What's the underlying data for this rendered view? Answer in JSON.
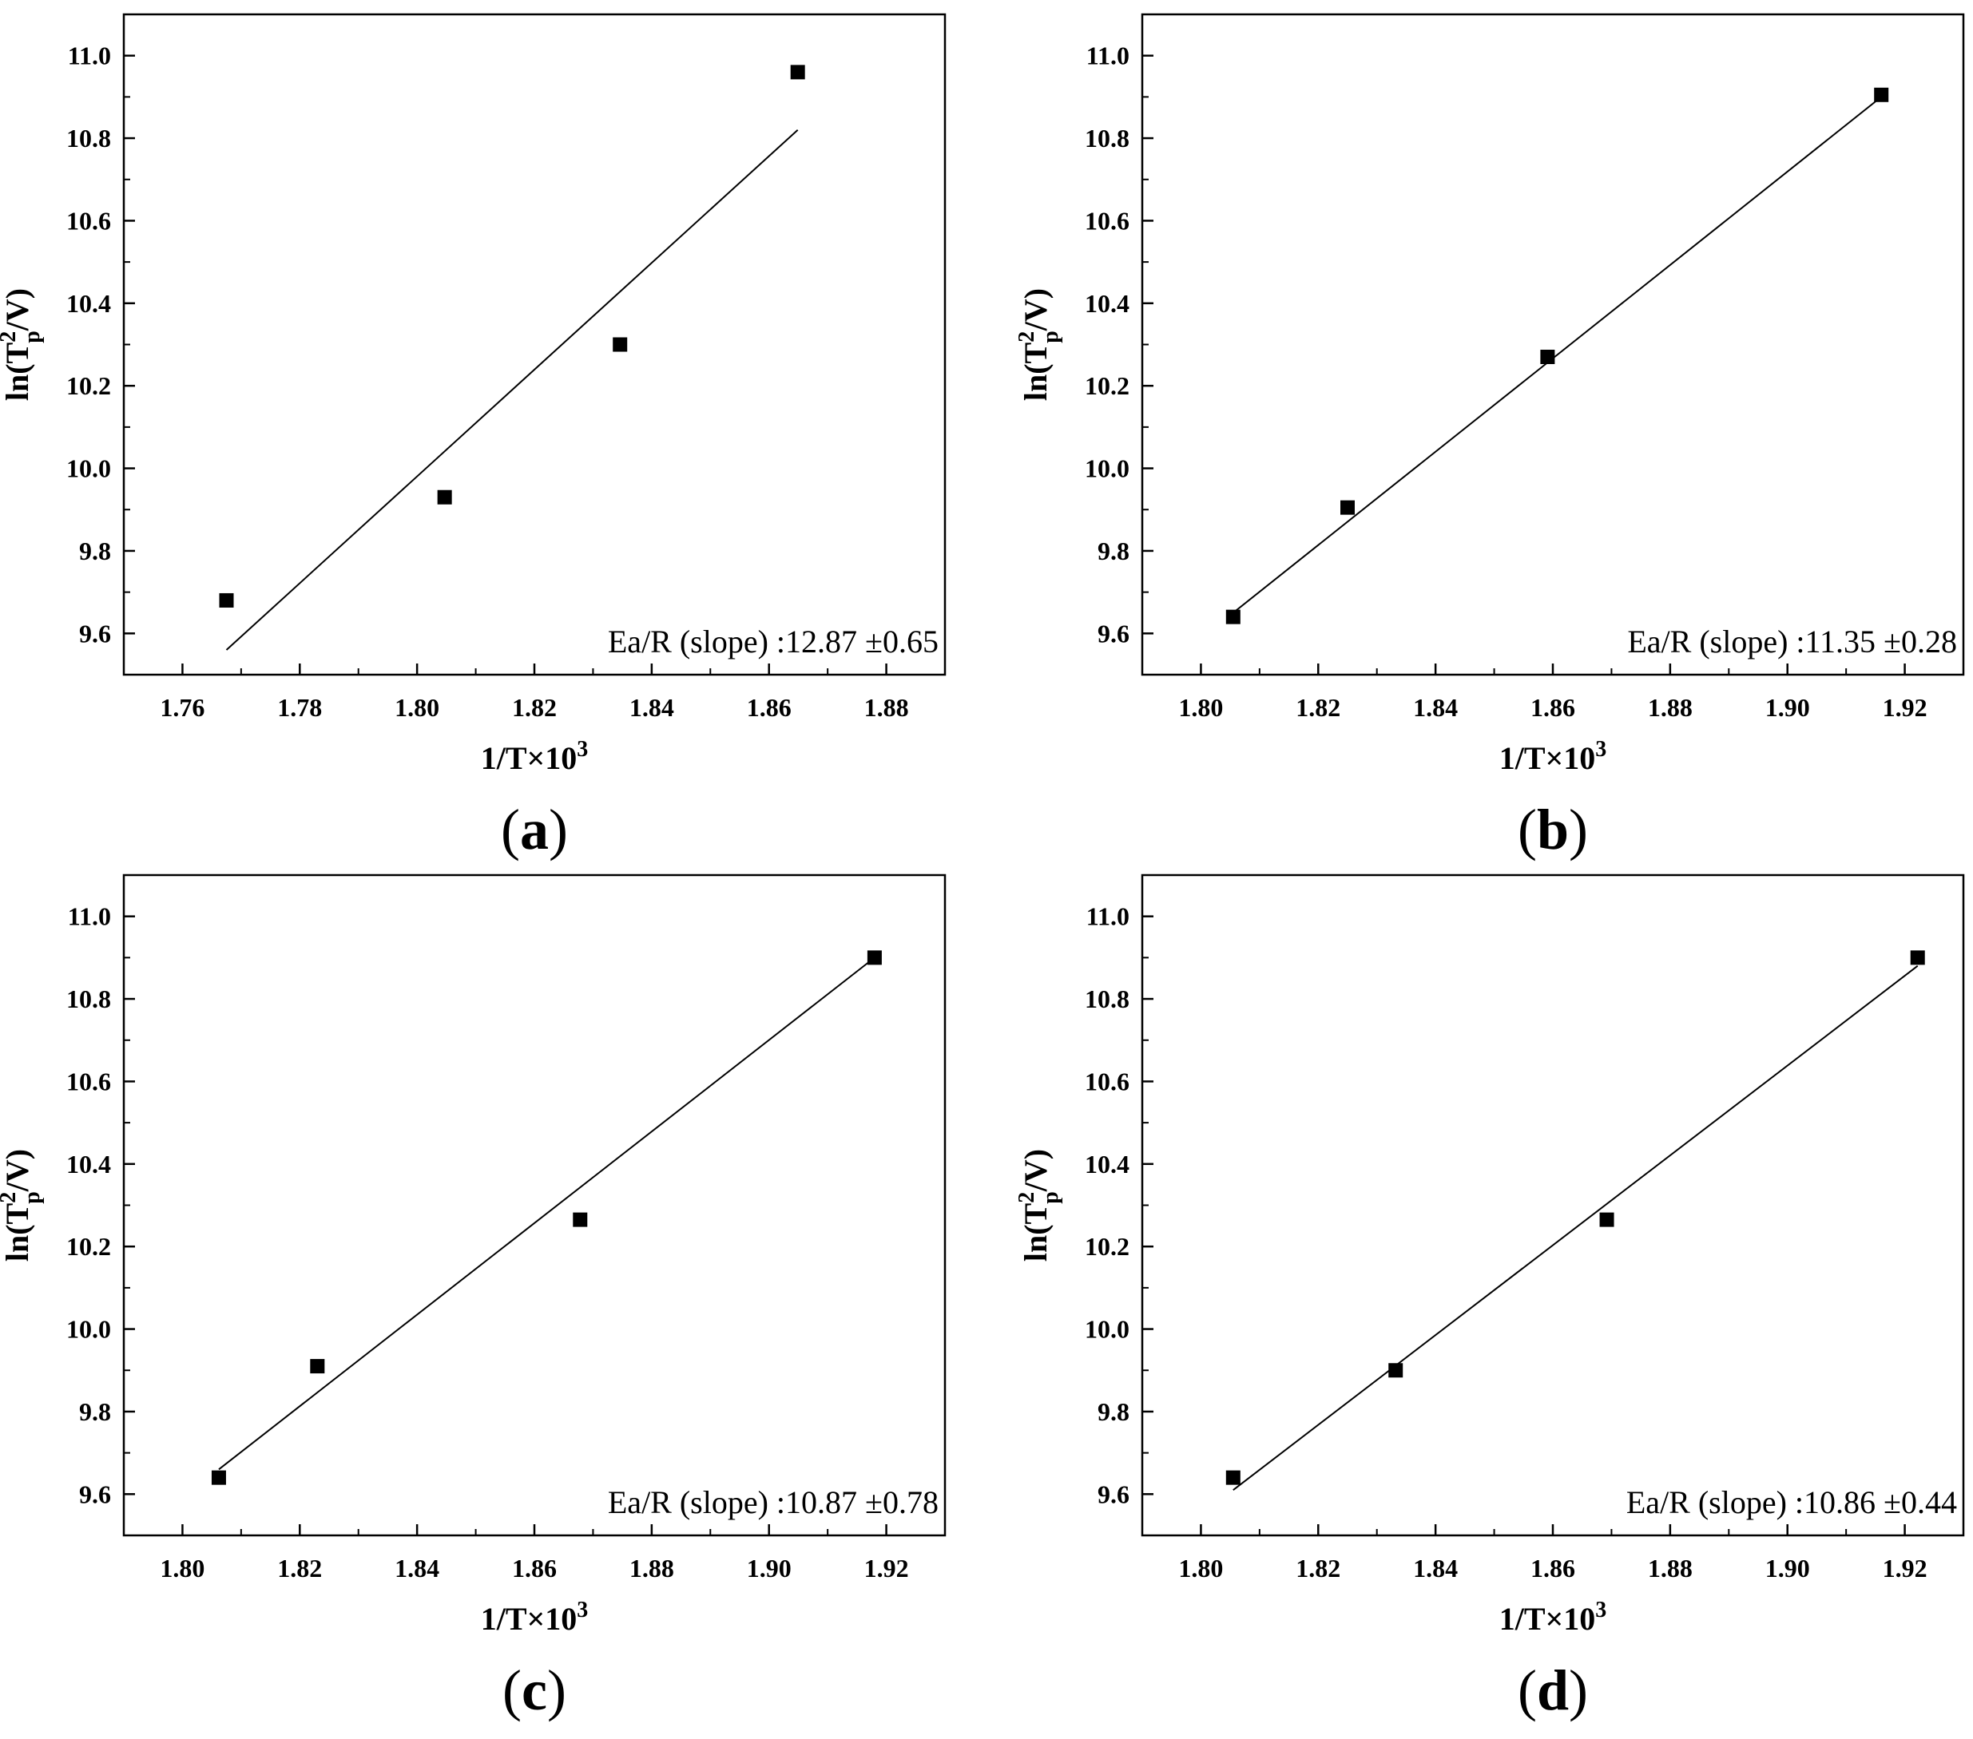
{
  "chart_data": [
    {
      "type": "scatter",
      "panel_label": "a",
      "xlabel_base": "1/T×10",
      "xlabel_sup": "3",
      "ylabel_prefix": "ln(T",
      "ylabel_sup": "2",
      "ylabel_sub": "p",
      "ylabel_suffix": "/V)",
      "annotation": "Ea/R (slope) :12.87 ±0.65",
      "xlim": [
        1.75,
        1.89
      ],
      "ylim": [
        9.5,
        11.1
      ],
      "xticks": [
        1.76,
        1.78,
        1.8,
        1.82,
        1.84,
        1.86,
        1.88
      ],
      "xtick_labels": [
        "1.76",
        "1.78",
        "1.80",
        "1.82",
        "1.84",
        "1.86",
        "1.88"
      ],
      "yticks": [
        9.6,
        9.8,
        10.0,
        10.2,
        10.4,
        10.6,
        10.8,
        11.0
      ],
      "ytick_labels": [
        "9.6",
        "9.8",
        "10.0",
        "10.2",
        "10.4",
        "10.6",
        "10.8",
        "11.0"
      ],
      "points": [
        {
          "x": 1.7675,
          "y": 9.68
        },
        {
          "x": 1.8047,
          "y": 9.93
        },
        {
          "x": 1.8346,
          "y": 10.3
        },
        {
          "x": 1.8649,
          "y": 10.96
        }
      ],
      "fit_line": {
        "x": [
          1.7675,
          1.8649
        ],
        "y": [
          9.56,
          10.82
        ]
      },
      "grid": false,
      "marker": "square",
      "color": "#000000"
    },
    {
      "type": "scatter",
      "panel_label": "b",
      "xlabel_base": "1/T×10",
      "xlabel_sup": "3",
      "ylabel_prefix": "ln(T",
      "ylabel_sup": "2",
      "ylabel_sub": "p",
      "ylabel_suffix": "/V)",
      "annotation": "Ea/R (slope) :11.35 ±0.28",
      "xlim": [
        1.79,
        1.93
      ],
      "ylim": [
        9.5,
        11.1
      ],
      "xticks": [
        1.8,
        1.82,
        1.84,
        1.86,
        1.88,
        1.9,
        1.92
      ],
      "xtick_labels": [
        "1.80",
        "1.82",
        "1.84",
        "1.86",
        "1.88",
        "1.90",
        "1.92"
      ],
      "yticks": [
        9.6,
        9.8,
        10.0,
        10.2,
        10.4,
        10.6,
        10.8,
        11.0
      ],
      "ytick_labels": [
        "9.6",
        "9.8",
        "10.0",
        "10.2",
        "10.4",
        "10.6",
        "10.8",
        "11.0"
      ],
      "points": [
        {
          "x": 1.8055,
          "y": 9.64
        },
        {
          "x": 1.825,
          "y": 9.905
        },
        {
          "x": 1.8591,
          "y": 10.27
        },
        {
          "x": 1.916,
          "y": 10.905
        }
      ],
      "fit_line": {
        "x": [
          1.8055,
          1.916
        ],
        "y": [
          9.65,
          10.9
        ]
      },
      "grid": false,
      "marker": "square",
      "color": "#000000"
    },
    {
      "type": "scatter",
      "panel_label": "c",
      "xlabel_base": "1/T×10",
      "xlabel_sup": "3",
      "ylabel_prefix": "ln(T",
      "ylabel_sup": "2",
      "ylabel_sub": "p",
      "ylabel_suffix": "/V)",
      "annotation": "Ea/R (slope) :10.87 ±0.78",
      "xlim": [
        1.79,
        1.93
      ],
      "ylim": [
        9.5,
        11.1
      ],
      "xticks": [
        1.8,
        1.82,
        1.84,
        1.86,
        1.88,
        1.9,
        1.92
      ],
      "xtick_labels": [
        "1.80",
        "1.82",
        "1.84",
        "1.86",
        "1.88",
        "1.90",
        "1.92"
      ],
      "yticks": [
        9.6,
        9.8,
        10.0,
        10.2,
        10.4,
        10.6,
        10.8,
        11.0
      ],
      "ytick_labels": [
        "9.6",
        "9.8",
        "10.0",
        "10.2",
        "10.4",
        "10.6",
        "10.8",
        "11.0"
      ],
      "points": [
        {
          "x": 1.8062,
          "y": 9.64
        },
        {
          "x": 1.823,
          "y": 9.91
        },
        {
          "x": 1.8678,
          "y": 10.265
        },
        {
          "x": 1.918,
          "y": 10.9
        }
      ],
      "fit_line": {
        "x": [
          1.8062,
          1.918
        ],
        "y": [
          9.66,
          10.9
        ]
      },
      "grid": false,
      "marker": "square",
      "color": "#000000"
    },
    {
      "type": "scatter",
      "panel_label": "d",
      "xlabel_base": "1/T×10",
      "xlabel_sup": "3",
      "ylabel_prefix": "ln(T",
      "ylabel_sup": "2",
      "ylabel_sub": "p",
      "ylabel_suffix": "/V)",
      "annotation": "Ea/R (slope) :10.86 ±0.44",
      "xlim": [
        1.79,
        1.93
      ],
      "ylim": [
        9.5,
        11.1
      ],
      "xticks": [
        1.8,
        1.82,
        1.84,
        1.86,
        1.88,
        1.9,
        1.92
      ],
      "xtick_labels": [
        "1.80",
        "1.82",
        "1.84",
        "1.86",
        "1.88",
        "1.90",
        "1.92"
      ],
      "yticks": [
        9.6,
        9.8,
        10.0,
        10.2,
        10.4,
        10.6,
        10.8,
        11.0
      ],
      "ytick_labels": [
        "9.6",
        "9.8",
        "10.0",
        "10.2",
        "10.4",
        "10.6",
        "10.8",
        "11.0"
      ],
      "points": [
        {
          "x": 1.8055,
          "y": 9.64
        },
        {
          "x": 1.8332,
          "y": 9.9
        },
        {
          "x": 1.8692,
          "y": 10.265
        },
        {
          "x": 1.9222,
          "y": 10.9
        }
      ],
      "fit_line": {
        "x": [
          1.8055,
          1.9222
        ],
        "y": [
          9.61,
          10.88
        ]
      },
      "grid": false,
      "marker": "square",
      "color": "#000000"
    }
  ]
}
